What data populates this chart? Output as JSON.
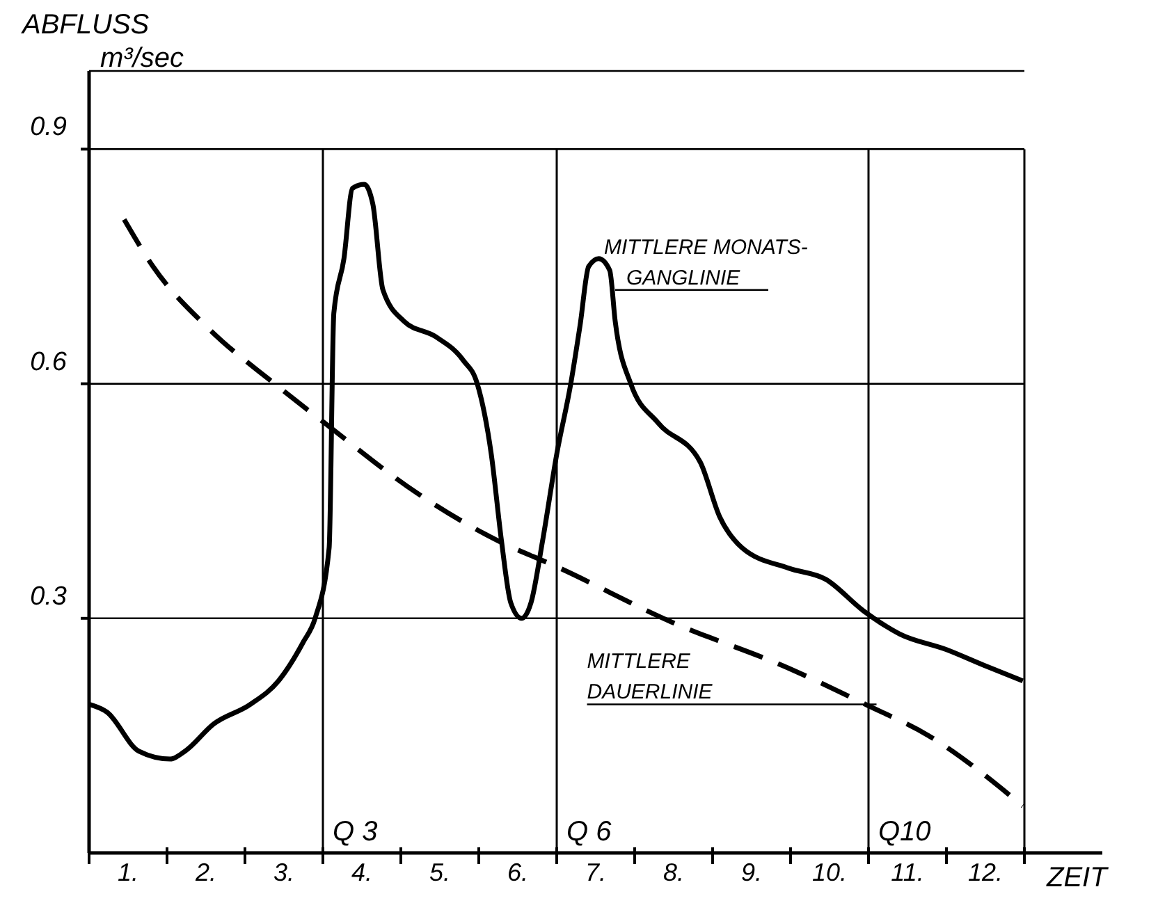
{
  "chart_data": {
    "type": "line",
    "ylabel": "ABFLUSS\nm³/sec",
    "xlabel": "ZEIT",
    "xlim": [
      0,
      13
    ],
    "ylim": [
      0,
      1
    ],
    "xticks": [
      {
        "value": 0,
        "label": null
      },
      {
        "value": 0.5,
        "label": "1."
      },
      {
        "value": 1,
        "label": null
      },
      {
        "value": 1.5,
        "label": "2."
      },
      {
        "value": 2,
        "label": null
      },
      {
        "value": 2.5,
        "label": "3."
      },
      {
        "value": 3,
        "label": null
      },
      {
        "value": 3.5,
        "label": "4."
      },
      {
        "value": 4,
        "label": null
      },
      {
        "value": 4.5,
        "label": "5."
      },
      {
        "value": 5,
        "label": null
      },
      {
        "value": 5.5,
        "label": "6."
      },
      {
        "value": 6,
        "label": null
      },
      {
        "value": 6.5,
        "label": "7."
      },
      {
        "value": 7,
        "label": null
      },
      {
        "value": 7.5,
        "label": "8."
      },
      {
        "value": 8,
        "label": null
      },
      {
        "value": 8.5,
        "label": "9."
      },
      {
        "value": 9,
        "label": null
      },
      {
        "value": 9.5,
        "label": "10."
      },
      {
        "value": 10,
        "label": null
      },
      {
        "value": 10.5,
        "label": "11."
      },
      {
        "value": 11,
        "label": null
      },
      {
        "value": 11.5,
        "label": "12."
      },
      {
        "value": 12,
        "label": null
      }
    ],
    "yticks": [
      0.3,
      0.6,
      0.9
    ],
    "grid": "y",
    "marker": "none",
    "series": [
      {
        "color": "#000000",
        "line_style": "solid",
        "x": [
          0,
          0.23,
          0.64,
          1.04,
          1.23,
          1.6,
          2.07,
          2.43,
          2.75,
          2.9,
          3.08,
          3.14,
          3.27,
          3.38,
          3.53,
          3.64,
          3.77,
          4.04,
          4.45,
          4.8,
          4.98,
          5.16,
          5.29,
          5.41,
          5.55,
          5.67,
          5.82,
          6.0,
          6.18,
          6.3,
          6.41,
          6.54,
          6.68,
          6.75,
          6.95,
          7.3,
          7.84,
          8.09,
          8.38,
          8.98,
          9.45,
          9.93,
          10.4,
          11.0,
          11.48,
          11.98
        ],
        "values": [
          0.19,
          0.18,
          0.13,
          0.12,
          0.13,
          0.165,
          0.19,
          0.22,
          0.27,
          0.3,
          0.39,
          0.69,
          0.76,
          0.85,
          0.855,
          0.83,
          0.72,
          0.68,
          0.66,
          0.63,
          0.6,
          0.51,
          0.4,
          0.32,
          0.3,
          0.32,
          0.4,
          0.51,
          0.6,
          0.675,
          0.75,
          0.76,
          0.745,
          0.68,
          0.6,
          0.55,
          0.5,
          0.43,
          0.39,
          0.364,
          0.35,
          0.31,
          0.28,
          0.26,
          0.24,
          0.22
        ]
      },
      {
        "color": "#000000",
        "line_style": "dashed",
        "x": [
          0.45,
          0.82,
          1.54,
          2.38,
          3.02,
          4.21,
          5.23,
          6.0,
          7.48,
          8.98,
          9.96,
          10.77,
          11.98
        ],
        "values": [
          0.81,
          0.75,
          0.67,
          0.6,
          0.55,
          0.46,
          0.4,
          0.366,
          0.295,
          0.236,
          0.19,
          0.15,
          0.06
        ]
      }
    ],
    "ref_lines": [
      {
        "axis": "x",
        "value": 3,
        "label": "Q 3"
      },
      {
        "axis": "x",
        "value": 6,
        "label": "Q 6"
      },
      {
        "axis": "x",
        "value": 10,
        "label": "Q10"
      },
      {
        "axis": "x",
        "value": 12,
        "label": null
      }
    ],
    "annotations": [
      {
        "text": "MITTLERE MONATS-\nGANGLINIE",
        "x": 6.75,
        "y": 0.72
      },
      {
        "text": "MITTLERE\nDAUERLINIE",
        "x": 9.96,
        "y": 0.19
      }
    ]
  }
}
